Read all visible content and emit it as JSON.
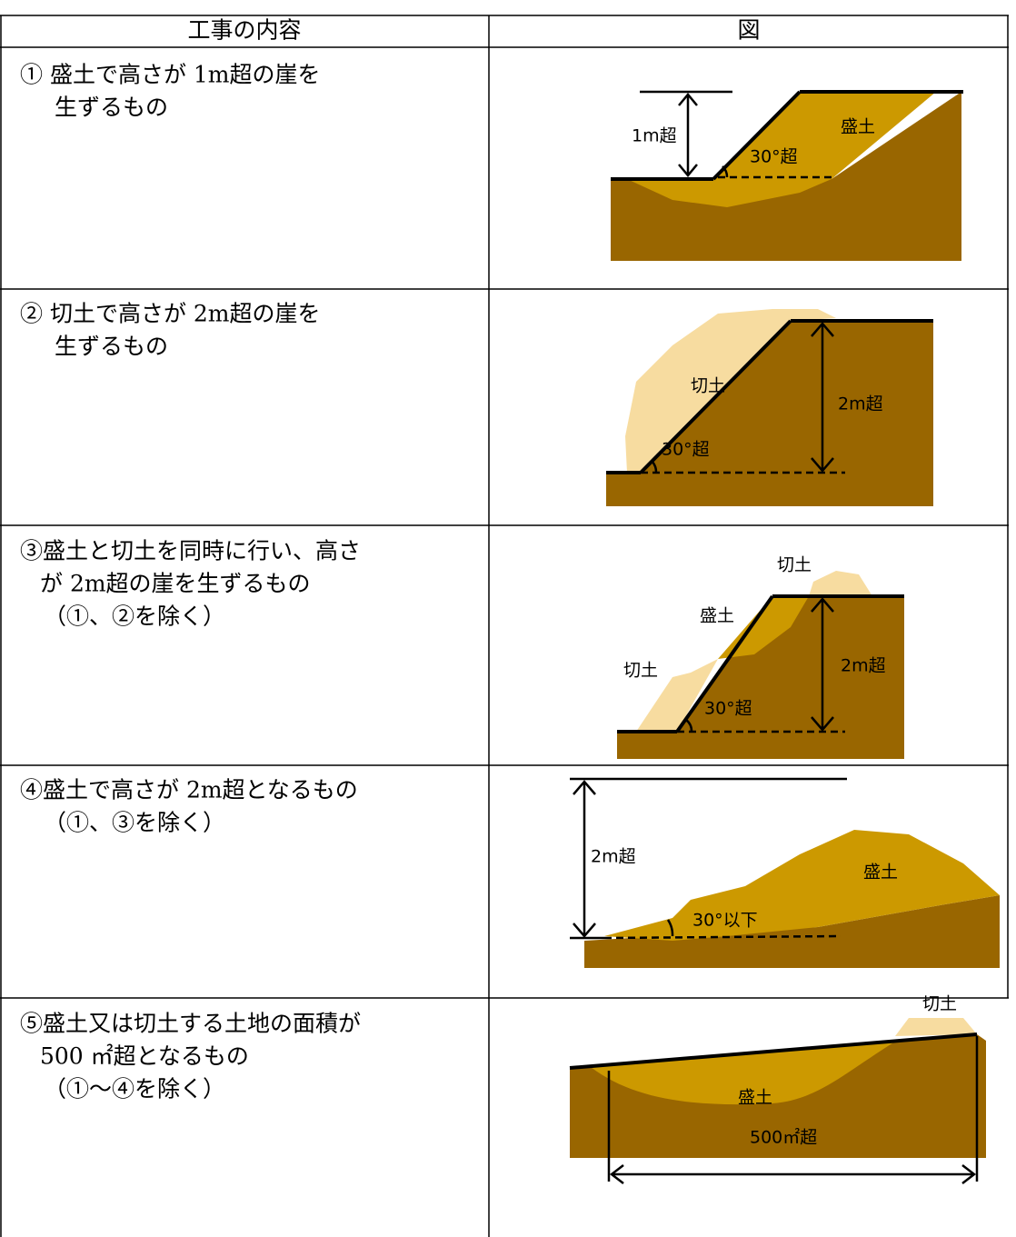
{
  "table": {
    "header": [
      "工事の内容",
      "図"
    ],
    "rows": [
      {
        "lines": [
          "① 盛土で高さが 1m超の崖を",
          "生ずるもの"
        ],
        "figure_labels": [
          "1m超",
          "盛土",
          "30°超"
        ]
      },
      {
        "lines": [
          "② 切土で高さが 2m超の崖を",
          "生ずるもの"
        ],
        "figure_labels": [
          "切土",
          "2m超",
          "30°超"
        ]
      },
      {
        "lines": [
          "③盛土と切土を同時に行い、高さ",
          "が 2m超の崖を生ずるもの",
          "（①、②を除く）"
        ],
        "figure_labels": [
          "切土",
          "盛土",
          "切土",
          "2m超",
          "30°超"
        ]
      },
      {
        "lines": [
          "④盛土で高さが 2m超となるもの",
          "（①、③を除く）"
        ],
        "figure_labels": [
          "2m超",
          "盛土",
          "30°以下"
        ]
      },
      {
        "lines": [
          "⑤盛土又は切土する土地の面積が",
          "500 ㎡超となるもの",
          "（①～④を除く）"
        ],
        "figure_labels": [
          "切土",
          "盛土",
          "500㎡超"
        ]
      }
    ]
  }
}
